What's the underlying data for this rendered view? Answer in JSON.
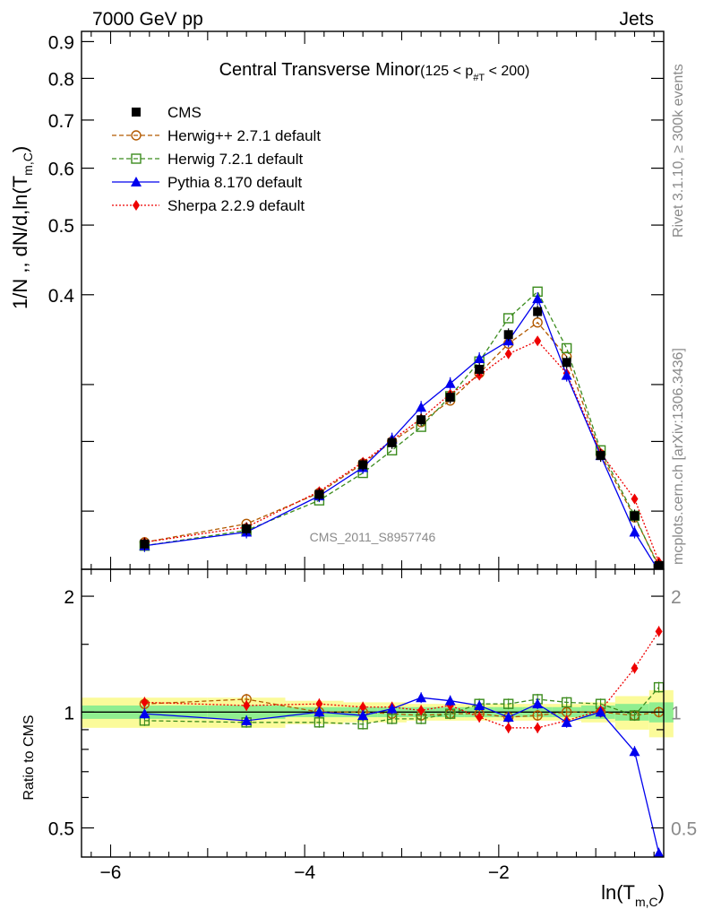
{
  "header": {
    "left": "7000 GeV pp",
    "right": "Jets"
  },
  "side_text": {
    "rivet": "Rivet 3.1.10, ≥ 300k events",
    "mcplots": "mcplots.cern.ch [arXiv:1306.3436]"
  },
  "watermark": "CMS_2011_S8957746",
  "plot_title": {
    "main": "Central Transverse Minor",
    "cut": "(125 < p",
    "cut_sub": "#T",
    "cut_end": " < 200)"
  },
  "ylabel": {
    "main": "1/N ,, dN/d,ln(T",
    "sub": "m,C",
    "end": ")"
  },
  "xlabel": {
    "main": "ln(T",
    "sub": "m,C",
    "end": ")"
  },
  "ratio_ylabel": "Ratio to CMS",
  "legend": [
    {
      "key": "cms",
      "label": "CMS"
    },
    {
      "key": "herwigpp",
      "label": "Herwig++ 2.7.1 default"
    },
    {
      "key": "herwig7",
      "label": "Herwig 7.2.1 default"
    },
    {
      "key": "pythia",
      "label": "Pythia 8.170 default"
    },
    {
      "key": "sherpa",
      "label": "Sherpa 2.2.9 default"
    }
  ],
  "colors": {
    "cms": "#000000",
    "herwigpp": "#b35a00",
    "herwig7": "#3c8c1e",
    "pythia": "#0000ee",
    "sherpa": "#ee0000",
    "band_inner": "#90ee90",
    "band_outer": "#fbfb9a"
  },
  "chart_data": {
    "type": "line",
    "main": {
      "yscale": "log",
      "ylim": [
        0.166,
        0.93
      ],
      "xlim": [
        -6.3,
        -0.3
      ],
      "yticks": [
        {
          "value": 0.4,
          "label": "0.4"
        },
        {
          "value": 0.5,
          "label": "0.5"
        },
        {
          "value": 0.6,
          "label": "0.6"
        },
        {
          "value": 0.7,
          "label": "0.7"
        },
        {
          "value": 0.8,
          "label": "0.8"
        },
        {
          "value": 0.9,
          "label": "0.9"
        }
      ],
      "minor_yticks": [
        0.2,
        0.25,
        0.3
      ],
      "x": [
        -5.65,
        -4.6,
        -3.85,
        -3.4,
        -3.1,
        -2.8,
        -2.5,
        -2.2,
        -1.9,
        -1.6,
        -1.3,
        -0.95,
        -0.6,
        -0.35
      ],
      "series": [
        {
          "key": "cms",
          "name": "CMS",
          "values": [
            0.18,
            0.189,
            0.211,
            0.232,
            0.249,
            0.268,
            0.288,
            0.315,
            0.352,
            0.379,
            0.322,
            0.239,
            0.197,
            0.168
          ]
        },
        {
          "key": "herwigpp",
          "name": "Herwig++ 2.7.1 default",
          "values": [
            0.181,
            0.192,
            0.212,
            0.233,
            0.25,
            0.266,
            0.285,
            0.311,
            0.342,
            0.366,
            0.328,
            0.24,
            0.196,
            0.168
          ]
        },
        {
          "key": "herwig7",
          "name": "Herwig 7.2.1 default",
          "values": [
            0.179,
            0.188,
            0.207,
            0.226,
            0.243,
            0.262,
            0.289,
            0.323,
            0.371,
            0.404,
            0.337,
            0.243,
            0.197,
            0.167
          ]
        },
        {
          "key": "pythia",
          "name": "Pythia 8.170 default",
          "values": [
            0.179,
            0.187,
            0.21,
            0.23,
            0.252,
            0.279,
            0.301,
            0.326,
            0.345,
            0.395,
            0.309,
            0.239,
            0.187,
            0.165
          ]
        },
        {
          "key": "sherpa",
          "name": "Sherpa 2.2.9 default",
          "values": [
            0.181,
            0.19,
            0.213,
            0.234,
            0.251,
            0.269,
            0.291,
            0.309,
            0.331,
            0.345,
            0.311,
            0.241,
            0.208,
            0.17
          ]
        }
      ]
    },
    "ratio": {
      "yscale": "log",
      "ylim": [
        0.42,
        2.35
      ],
      "reference_line": 1,
      "yticks": [
        {
          "value": 0.5,
          "label": "0.5"
        },
        {
          "value": 1,
          "label": "1"
        },
        {
          "value": 2,
          "label": "2"
        }
      ],
      "minor_yticks": [
        0.6,
        0.7,
        0.8,
        0.9,
        1.5
      ],
      "xticks": [
        {
          "value": -6,
          "label": "−6"
        },
        {
          "value": -4,
          "label": "−4"
        },
        {
          "value": -2,
          "label": "−2"
        }
      ],
      "x": [
        -5.65,
        -4.6,
        -3.85,
        -3.4,
        -3.1,
        -2.8,
        -2.5,
        -2.2,
        -1.9,
        -1.6,
        -1.3,
        -0.95,
        -0.6,
        -0.35
      ],
      "series": [
        {
          "key": "herwigpp",
          "values": [
            1.05,
            1.08,
            1.0,
            1.0,
            0.99,
            0.98,
            0.99,
            0.99,
            0.97,
            0.98,
            1.0,
            1.0,
            0.98,
            1.0
          ]
        },
        {
          "key": "herwig7",
          "values": [
            0.95,
            0.94,
            0.94,
            0.93,
            0.96,
            0.96,
            0.99,
            1.05,
            1.05,
            1.08,
            1.06,
            1.05,
            0.98,
            1.16
          ]
        },
        {
          "key": "pythia",
          "values": [
            0.99,
            0.95,
            1.0,
            0.98,
            1.02,
            1.09,
            1.07,
            1.04,
            0.97,
            1.05,
            0.94,
            1.0,
            0.79,
            0.43
          ]
        },
        {
          "key": "sherpa",
          "values": [
            1.06,
            1.04,
            1.05,
            1.03,
            1.03,
            1.01,
            1.04,
            0.97,
            0.91,
            0.91,
            0.95,
            1.01,
            1.3,
            1.62
          ]
        }
      ],
      "band": {
        "x_edges": [
          -6.3,
          -5.0,
          -4.2,
          -3.6,
          -3.25,
          -2.95,
          -2.65,
          -2.35,
          -2.05,
          -1.75,
          -1.45,
          -1.15,
          -0.8,
          -0.45,
          -0.2
        ],
        "inner": [
          0.04,
          0.04,
          0.03,
          0.03,
          0.03,
          0.03,
          0.03,
          0.03,
          0.03,
          0.03,
          0.03,
          0.04,
          0.05,
          0.06
        ],
        "outer": [
          0.09,
          0.09,
          0.07,
          0.06,
          0.06,
          0.05,
          0.05,
          0.05,
          0.05,
          0.05,
          0.05,
          0.06,
          0.1,
          0.14
        ]
      }
    }
  }
}
